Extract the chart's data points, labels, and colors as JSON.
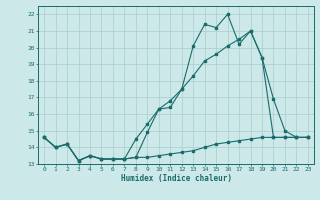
{
  "xlabel": "Humidex (Indice chaleur)",
  "xlim": [
    -0.5,
    23.5
  ],
  "ylim": [
    13,
    22.5
  ],
  "xticks": [
    0,
    1,
    2,
    3,
    4,
    5,
    6,
    7,
    8,
    9,
    10,
    11,
    12,
    13,
    14,
    15,
    16,
    17,
    18,
    19,
    20,
    21,
    22,
    23
  ],
  "yticks": [
    13,
    14,
    15,
    16,
    17,
    18,
    19,
    20,
    21,
    22
  ],
  "background_color": "#cce8e8",
  "grid_color": "#aacccc",
  "line_color": "#1a6b6b",
  "line1_x": [
    0,
    1,
    2,
    3,
    4,
    5,
    6,
    7,
    8,
    9,
    10,
    11,
    12,
    13,
    14,
    15,
    16,
    17,
    18,
    19,
    20,
    21,
    22,
    23
  ],
  "line1_y": [
    14.6,
    14.0,
    14.2,
    13.2,
    13.5,
    13.3,
    13.3,
    13.3,
    13.4,
    13.4,
    13.5,
    13.6,
    13.7,
    13.8,
    14.0,
    14.2,
    14.3,
    14.4,
    14.5,
    14.6,
    14.6,
    14.6,
    14.6,
    14.6
  ],
  "line2_x": [
    0,
    1,
    2,
    3,
    4,
    5,
    6,
    7,
    8,
    9,
    10,
    11,
    12,
    13,
    14,
    15,
    16,
    17,
    18,
    19,
    20,
    21,
    22,
    23
  ],
  "line2_y": [
    14.6,
    14.0,
    14.2,
    13.2,
    13.5,
    13.3,
    13.3,
    13.3,
    13.4,
    14.9,
    16.3,
    16.4,
    17.5,
    20.1,
    21.4,
    21.2,
    22.0,
    20.2,
    21.0,
    19.4,
    16.9,
    15.0,
    14.6,
    14.6
  ],
  "line3_x": [
    0,
    1,
    2,
    3,
    4,
    5,
    6,
    7,
    8,
    9,
    10,
    11,
    12,
    13,
    14,
    15,
    16,
    17,
    18,
    19,
    20,
    21,
    22,
    23
  ],
  "line3_y": [
    14.6,
    14.0,
    14.2,
    13.2,
    13.5,
    13.3,
    13.3,
    13.3,
    14.5,
    15.4,
    16.3,
    16.8,
    17.5,
    18.3,
    19.2,
    19.6,
    20.1,
    20.5,
    21.0,
    19.4,
    14.6,
    14.6,
    14.6,
    14.6
  ]
}
